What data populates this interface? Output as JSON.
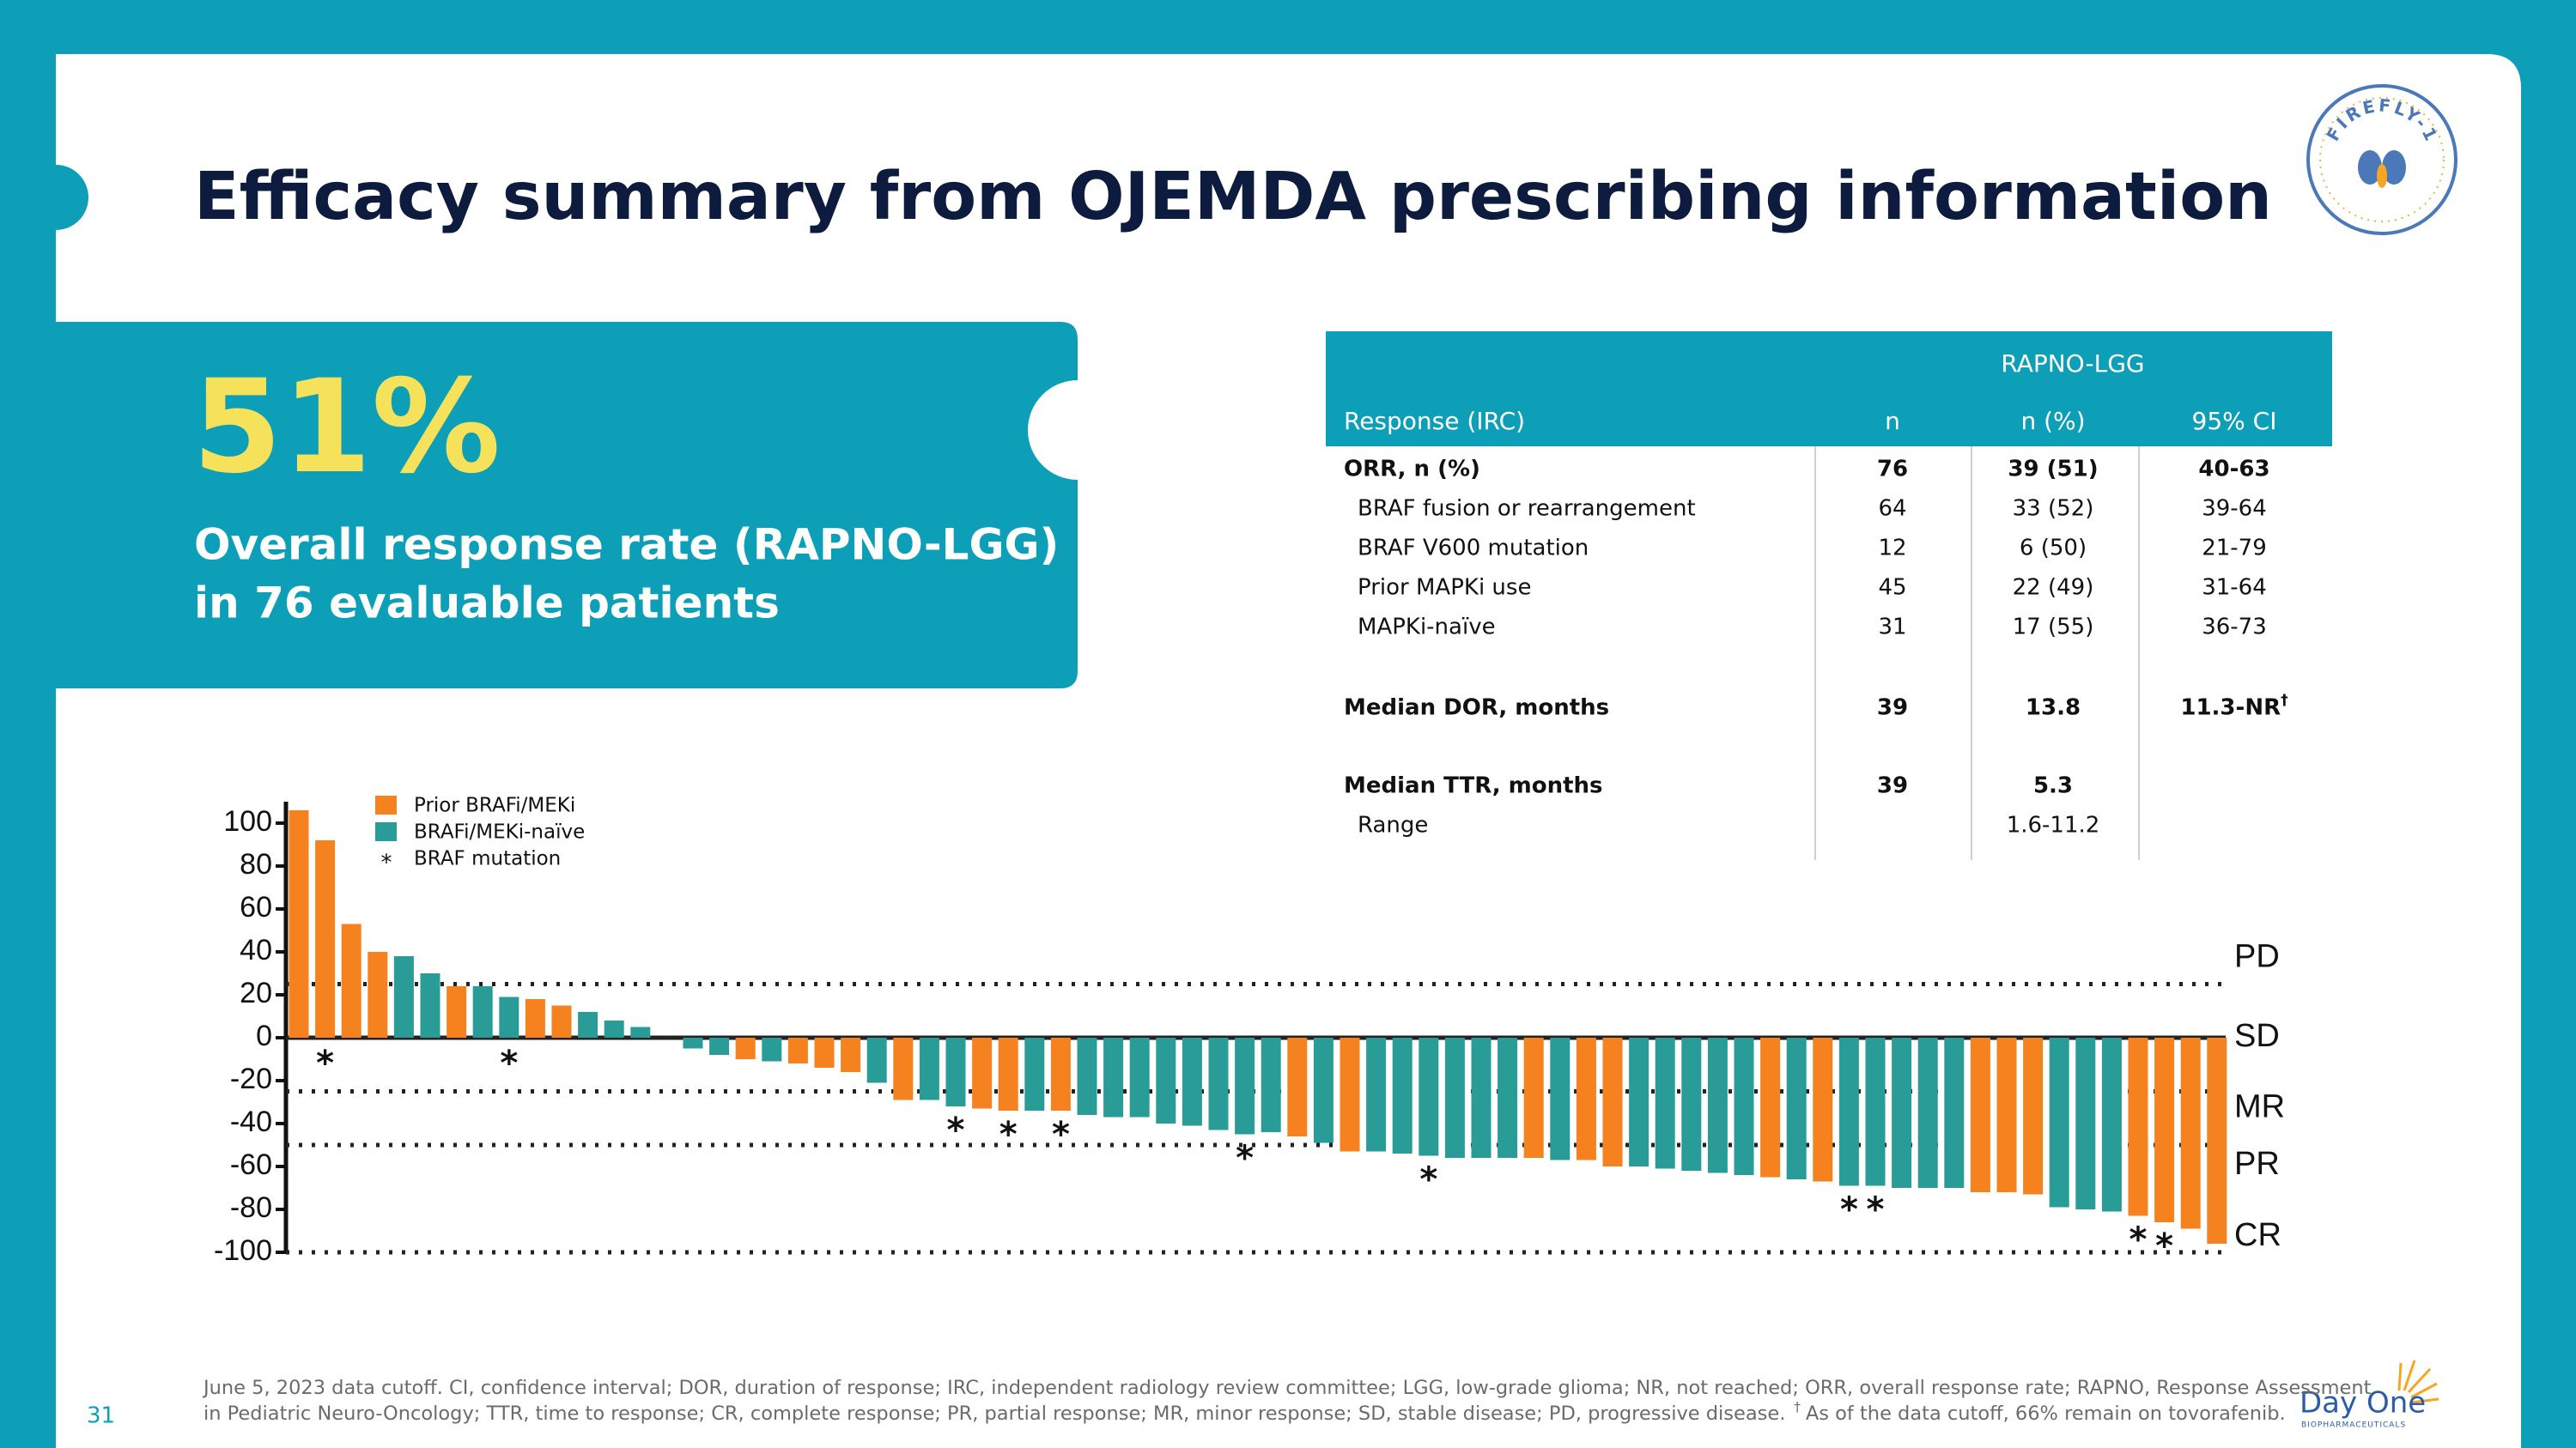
{
  "slide": {
    "title": "Efficacy summary from OJEMDA prescribing information",
    "page_number": "31"
  },
  "callout": {
    "value": "51%",
    "line1": "Overall response rate (RAPNO-LGG)",
    "line2": "in 76 evaluable patients"
  },
  "table": {
    "group_header": "RAPNO-LGG",
    "columns": [
      "Response (IRC)",
      "n",
      "n (%)",
      "95% CI"
    ],
    "rows": [
      {
        "label": "ORR, n (%)",
        "n": 76,
        "pct": "39 (51)",
        "ci": "40-63",
        "bold": true
      },
      {
        "label": "BRAF fusion or rearrangement",
        "n": 64,
        "pct": "33 (52)",
        "ci": "39-64",
        "indent": true
      },
      {
        "label": "BRAF V600 mutation",
        "n": 12,
        "pct": "6 (50)",
        "ci": "21-79",
        "indent": true
      },
      {
        "label": "Prior MAPKi use",
        "n": 45,
        "pct": "22 (49)",
        "ci": "31-64",
        "indent": true
      },
      {
        "label": "MAPKi-naïve",
        "n": 31,
        "pct": "17 (55)",
        "ci": "36-73",
        "indent": true
      },
      {
        "label": "Median DOR, months",
        "n": 39,
        "pct": 13.8,
        "ci": "11.3-NR",
        "ci_note": "†",
        "bold": true
      },
      {
        "label": "Median TTR, months",
        "n": 39,
        "pct": 5.3,
        "bold": true
      },
      {
        "label": "Range",
        "pct": "1.6-11.2",
        "indent": true
      }
    ]
  },
  "chart_data": {
    "type": "bar",
    "values": [
      106,
      92,
      53,
      40,
      38,
      30,
      24,
      24,
      19,
      18,
      15,
      12,
      8,
      5,
      0,
      -5,
      -8,
      -10,
      -11,
      -12,
      -14,
      -16,
      -21,
      -29,
      -29,
      -32,
      -33,
      -34,
      -34,
      -34,
      -36,
      -37,
      -37,
      -40,
      -41,
      -43,
      -45,
      -44,
      -46,
      -49,
      -53,
      -53,
      -54,
      -55,
      -56,
      -56,
      -56,
      -56,
      -57,
      -57,
      -60,
      -60,
      -61,
      -62,
      -63,
      -64,
      -65,
      -66,
      -67,
      -69,
      -69,
      -70,
      -70,
      -70,
      -72,
      -72,
      -73,
      -79,
      -80,
      -81,
      -83,
      -86,
      -89,
      -96
    ],
    "group": [
      0,
      0,
      0,
      0,
      1,
      1,
      0,
      1,
      1,
      0,
      0,
      1,
      1,
      1,
      1,
      1,
      1,
      0,
      1,
      0,
      0,
      0,
      1,
      0,
      1,
      1,
      0,
      0,
      1,
      0,
      1,
      1,
      1,
      1,
      1,
      1,
      1,
      1,
      0,
      1,
      0,
      1,
      1,
      1,
      1,
      1,
      1,
      0,
      1,
      0,
      0,
      1,
      1,
      1,
      1,
      1,
      0,
      1,
      0,
      1,
      1,
      1,
      1,
      1,
      0,
      0,
      0,
      1,
      1,
      1,
      0,
      0,
      0,
      0
    ],
    "series": [
      {
        "name": "Prior BRAFi/MEKi",
        "color": "#f5821f"
      },
      {
        "name": "BRAFi/MEKi-naïve",
        "color": "#2a9c98"
      }
    ],
    "mutation_marker": "*",
    "mutation_label": "BRAF mutation",
    "mutation_bars": [
      1,
      8,
      25,
      27,
      29,
      36,
      43,
      59,
      60,
      70,
      71
    ],
    "ylim": [
      -100,
      110
    ],
    "yticks": [
      100,
      80,
      60,
      40,
      20,
      0,
      -20,
      -40,
      -60,
      -80,
      -100
    ],
    "reference_lines": [
      {
        "value": 25,
        "label": "PD"
      },
      {
        "value": 0,
        "label": "SD"
      },
      {
        "value": -25,
        "label": "MR"
      },
      {
        "value": -50,
        "label": "PR"
      },
      {
        "value": -100,
        "label": "CR"
      }
    ]
  },
  "footnote": {
    "line1": "June 5, 2023 data cutoff. CI, confidence interval; DOR, duration of response; IRC, independent radiology review committee; LGG, low-grade glioma; NR, not reached; ORR, overall response rate; RAPNO, Response Assessment",
    "line2": "in Pediatric Neuro-Oncology; TTR, time to response; CR, complete response; PR, partial response; MR, minor response; SD, stable disease; PD, progressive disease.",
    "dagger": "†",
    "note": "As of the data cutoff, 66% remain on tovorafenib."
  },
  "logo": {
    "name": "FIREFLY-1",
    "company": "Day One",
    "company_sub": "BIOPHARMACEUTICALS"
  }
}
